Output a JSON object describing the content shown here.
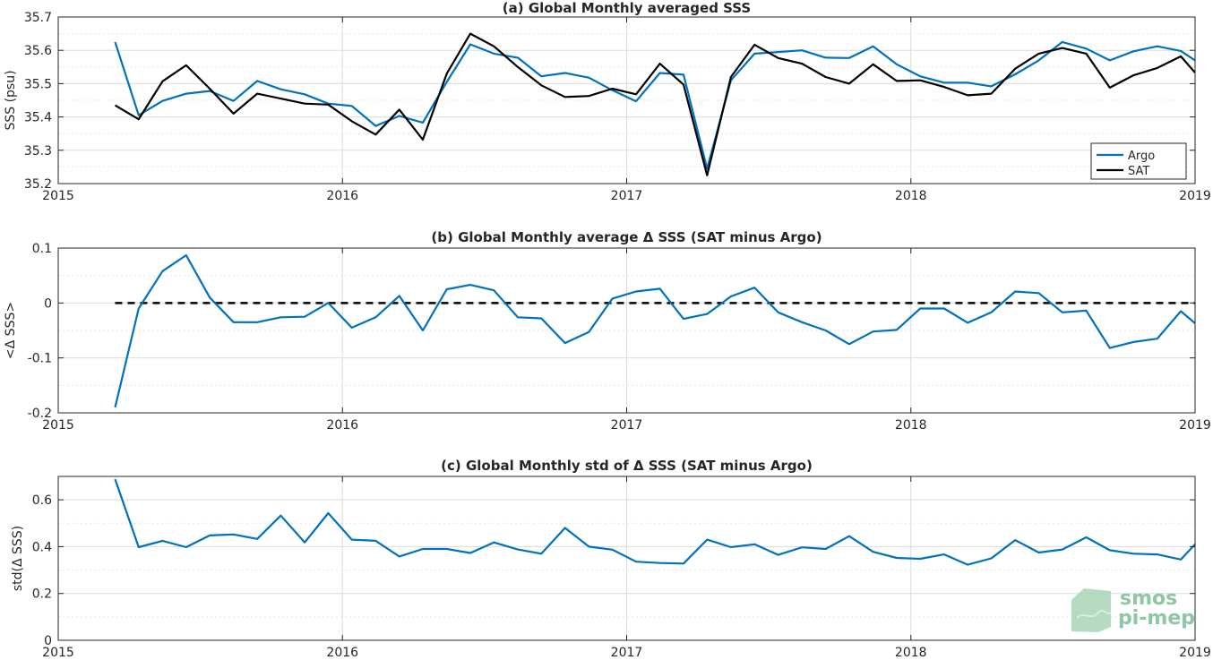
{
  "chart_data": [
    {
      "type": "line",
      "title": "(a) Global Monthly averaged SSS",
      "xlabel": "",
      "ylabel": "SSS (psu)",
      "xlim": [
        2015,
        2019
      ],
      "ylim": [
        35.2,
        35.7
      ],
      "x_ticks": [
        "2015",
        "2016",
        "2017",
        "2018",
        "2019"
      ],
      "y_ticks": [
        "35.2",
        "35.3",
        "35.4",
        "35.5",
        "35.6",
        "35.7"
      ],
      "grid": true,
      "legend": "bottom-right",
      "x": [
        2015.2,
        2015.283,
        2015.367,
        2015.45,
        2015.533,
        2015.617,
        2015.7,
        2015.783,
        2015.867,
        2015.95,
        2016.033,
        2016.117,
        2016.2,
        2016.283,
        2016.367,
        2016.45,
        2016.533,
        2016.617,
        2016.7,
        2016.783,
        2016.867,
        2016.95,
        2017.033,
        2017.117,
        2017.2,
        2017.283,
        2017.367,
        2017.45,
        2017.533,
        2017.617,
        2017.7,
        2017.783,
        2017.867,
        2017.95,
        2018.033,
        2018.117,
        2018.2,
        2018.283,
        2018.367,
        2018.45,
        2018.533,
        2018.617,
        2018.7,
        2018.783,
        2018.867,
        2018.95,
        2019.0
      ],
      "series": [
        {
          "name": "Argo",
          "color": "#0072bd",
          "values": [
            35.625,
            35.405,
            35.448,
            35.47,
            35.478,
            35.448,
            35.508,
            35.483,
            35.468,
            35.44,
            35.433,
            35.373,
            35.403,
            35.383,
            35.505,
            35.618,
            35.59,
            35.578,
            35.522,
            35.532,
            35.518,
            35.48,
            35.447,
            35.532,
            35.527,
            35.245,
            35.51,
            35.59,
            35.595,
            35.6,
            35.578,
            35.577,
            35.612,
            35.558,
            35.522,
            35.503,
            35.503,
            35.492,
            35.528,
            35.57,
            35.625,
            35.605,
            35.57,
            35.597,
            35.612,
            35.598,
            35.57
          ]
        },
        {
          "name": "SAT",
          "color": "#000000",
          "values": [
            35.435,
            35.393,
            35.507,
            35.555,
            35.485,
            35.41,
            35.47,
            35.455,
            35.44,
            35.437,
            35.387,
            35.347,
            35.422,
            35.332,
            35.53,
            35.65,
            35.612,
            35.55,
            35.495,
            35.46,
            35.463,
            35.485,
            35.468,
            35.56,
            35.497,
            35.225,
            35.52,
            35.617,
            35.577,
            35.56,
            35.52,
            35.5,
            35.558,
            35.508,
            35.51,
            35.49,
            35.465,
            35.47,
            35.545,
            35.59,
            35.607,
            35.59,
            35.488,
            35.525,
            35.547,
            35.582,
            35.533
          ]
        }
      ]
    },
    {
      "type": "line",
      "title": "(b) Global Monthly average Δ SSS (SAT minus Argo)",
      "xlabel": "",
      "ylabel": "<Δ SSS>",
      "xlim": [
        2015,
        2019
      ],
      "ylim": [
        -0.2,
        0.1
      ],
      "x_ticks": [
        "2015",
        "2016",
        "2017",
        "2018",
        "2019"
      ],
      "y_ticks": [
        "-0.2",
        "-0.1",
        "0",
        "0.1"
      ],
      "grid": true,
      "reference_line": {
        "y": 0,
        "style": "dashed",
        "color": "#000000"
      },
      "x": [
        2015.2,
        2015.283,
        2015.367,
        2015.45,
        2015.533,
        2015.617,
        2015.7,
        2015.783,
        2015.867,
        2015.95,
        2016.033,
        2016.117,
        2016.2,
        2016.283,
        2016.367,
        2016.45,
        2016.533,
        2016.617,
        2016.7,
        2016.783,
        2016.867,
        2016.95,
        2017.033,
        2017.117,
        2017.2,
        2017.283,
        2017.367,
        2017.45,
        2017.533,
        2017.617,
        2017.7,
        2017.783,
        2017.867,
        2017.95,
        2018.033,
        2018.117,
        2018.2,
        2018.283,
        2018.367,
        2018.45,
        2018.533,
        2018.617,
        2018.7,
        2018.783,
        2018.867,
        2018.95,
        2019.0
      ],
      "series": [
        {
          "color": "#0072bd",
          "values": [
            -0.19,
            -0.01,
            0.058,
            0.087,
            0.01,
            -0.035,
            -0.035,
            -0.026,
            -0.025,
            0.0,
            -0.045,
            -0.026,
            0.013,
            -0.05,
            0.025,
            0.033,
            0.023,
            -0.026,
            -0.028,
            -0.073,
            -0.053,
            0.008,
            0.021,
            0.026,
            -0.029,
            -0.02,
            0.012,
            0.028,
            -0.017,
            -0.035,
            -0.05,
            -0.075,
            -0.052,
            -0.049,
            -0.01,
            -0.01,
            -0.036,
            -0.017,
            0.021,
            0.018,
            -0.017,
            -0.014,
            -0.082,
            -0.071,
            -0.065,
            -0.015,
            -0.037
          ]
        }
      ]
    },
    {
      "type": "line",
      "title": "(c) Global Monthly std of Δ SSS (SAT minus Argo)",
      "xlabel": "",
      "ylabel": "std(Δ SSS)",
      "xlim": [
        2015,
        2019
      ],
      "ylim": [
        0,
        0.7
      ],
      "x_ticks": [
        "2015",
        "2016",
        "2017",
        "2018",
        "2019"
      ],
      "y_ticks": [
        "0",
        "0.2",
        "0.4",
        "0.6"
      ],
      "grid": true,
      "x": [
        2015.2,
        2015.283,
        2015.367,
        2015.45,
        2015.533,
        2015.617,
        2015.7,
        2015.783,
        2015.867,
        2015.95,
        2016.033,
        2016.117,
        2016.2,
        2016.283,
        2016.367,
        2016.45,
        2016.533,
        2016.617,
        2016.7,
        2016.783,
        2016.867,
        2016.95,
        2017.033,
        2017.117,
        2017.2,
        2017.283,
        2017.367,
        2017.45,
        2017.533,
        2017.617,
        2017.7,
        2017.783,
        2017.867,
        2017.95,
        2018.033,
        2018.117,
        2018.2,
        2018.283,
        2018.367,
        2018.45,
        2018.533,
        2018.617,
        2018.7,
        2018.783,
        2018.867,
        2018.95,
        2019.0
      ],
      "series": [
        {
          "color": "#0072bd",
          "values": [
            0.688,
            0.398,
            0.425,
            0.398,
            0.448,
            0.452,
            0.433,
            0.533,
            0.418,
            0.543,
            0.43,
            0.425,
            0.358,
            0.39,
            0.39,
            0.373,
            0.418,
            0.388,
            0.37,
            0.48,
            0.4,
            0.387,
            0.336,
            0.33,
            0.328,
            0.43,
            0.398,
            0.41,
            0.365,
            0.397,
            0.39,
            0.445,
            0.378,
            0.352,
            0.348,
            0.367,
            0.323,
            0.35,
            0.428,
            0.375,
            0.388,
            0.44,
            0.385,
            0.37,
            0.367,
            0.345,
            0.41
          ]
        }
      ]
    }
  ],
  "logo": {
    "line1": "smos",
    "line2": "pi-mep"
  }
}
